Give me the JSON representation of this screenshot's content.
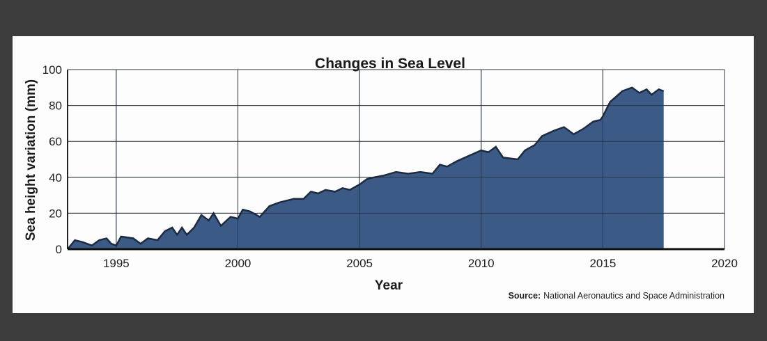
{
  "chart_data": {
    "type": "area",
    "title": "Changes in Sea Level",
    "xlabel": "Year",
    "ylabel": "Sea height variation (mm)",
    "xlim": [
      1993,
      2020
    ],
    "ylim": [
      0,
      100
    ],
    "xticks": [
      1995,
      2000,
      2005,
      2010,
      2015,
      2020
    ],
    "yticks": [
      0,
      20,
      40,
      60,
      80,
      100
    ],
    "grid": true,
    "source_label": "Source:",
    "source_text": "National Aeronautics and Space Administration",
    "fill_color": "#3b5b86",
    "series": [
      {
        "name": "Sea height variation",
        "x": [
          1993.0,
          1993.3,
          1993.6,
          1994.0,
          1994.3,
          1994.6,
          1994.8,
          1995.0,
          1995.2,
          1995.7,
          1996.0,
          1996.3,
          1996.7,
          1997.0,
          1997.3,
          1997.5,
          1997.7,
          1997.9,
          1998.2,
          1998.5,
          1998.8,
          1999.0,
          1999.3,
          1999.7,
          2000.0,
          2000.2,
          2000.5,
          2000.9,
          2001.3,
          2001.7,
          2002.0,
          2002.3,
          2002.7,
          2003.0,
          2003.3,
          2003.6,
          2004.0,
          2004.3,
          2004.6,
          2005.0,
          2005.3,
          2005.6,
          2006.0,
          2006.5,
          2007.0,
          2007.5,
          2008.0,
          2008.3,
          2008.6,
          2009.0,
          2009.5,
          2010.0,
          2010.3,
          2010.6,
          2010.9,
          2011.5,
          2011.8,
          2012.2,
          2012.5,
          2013.0,
          2013.4,
          2013.8,
          2014.2,
          2014.6,
          2014.9,
          2015.0,
          2015.3,
          2015.8,
          2016.2,
          2016.5,
          2016.8,
          2017.0,
          2017.3,
          2017.5
        ],
        "y": [
          0,
          5,
          4,
          2,
          5,
          6,
          3,
          2,
          7,
          6,
          3,
          6,
          5,
          10,
          12,
          8,
          12,
          8,
          12,
          19,
          16,
          20,
          13,
          18,
          17,
          22,
          21,
          18,
          24,
          26,
          27,
          28,
          28,
          32,
          31,
          33,
          32,
          34,
          33,
          36,
          39,
          40,
          41,
          43,
          42,
          43,
          42,
          47,
          46,
          49,
          52,
          55,
          54,
          57,
          51,
          50,
          55,
          58,
          63,
          66,
          68,
          64,
          67,
          71,
          72,
          74,
          82,
          88,
          90,
          87,
          89,
          86,
          89,
          88
        ]
      }
    ]
  }
}
